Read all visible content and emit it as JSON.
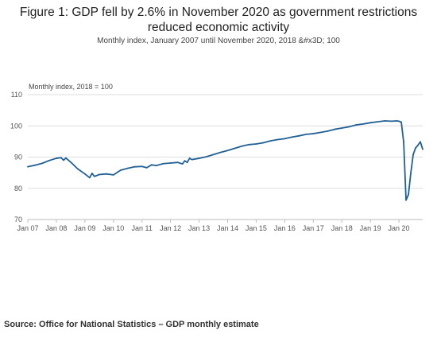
{
  "title": "Figure 1: GDP fell by 2.6% in November 2020 as government restrictions reduced economic activity",
  "subtitle": "Monthly index, January 2007 until November 2020, 2018 &#x3D; 100",
  "source": "Source: Office for National Statistics – GDP monthly estimate",
  "colors": {
    "line": "#206095",
    "grid": "#dddddd",
    "axis": "#bbbbbb"
  },
  "chart_data": {
    "type": "line",
    "title": "Figure 1: GDP fell by 2.6% in November 2020 as government restrictions reduced economic activity",
    "subtitle": "Monthly index, January 2007 until November 2020, 2018 &#x3D; 100",
    "ylabel": "Monthly index, 2018 = 100",
    "xlabel": "",
    "ylim": [
      70,
      110
    ],
    "yticks": [
      70,
      80,
      90,
      100,
      110
    ],
    "xlim": [
      "2007-01",
      "2020-11"
    ],
    "x_ticks": [
      "Jan 07",
      "Jan 08",
      "Jan 09",
      "Jan 10",
      "Jan 11",
      "Jan 12",
      "Jan 13",
      "Jan 14",
      "Jan 15",
      "Jan 16",
      "Jan 17",
      "Jan 18",
      "Jan 19",
      "Jan 20"
    ],
    "grid": true,
    "series": [
      {
        "values": [
          {
            "x": "2007-01",
            "y": 86.9
          },
          {
            "x": "2007-04",
            "y": 87.4
          },
          {
            "x": "2007-07",
            "y": 88.0
          },
          {
            "x": "2007-10",
            "y": 88.9
          },
          {
            "x": "2008-01",
            "y": 89.6
          },
          {
            "x": "2008-03",
            "y": 89.8
          },
          {
            "x": "2008-04",
            "y": 89.0
          },
          {
            "x": "2008-05",
            "y": 89.7
          },
          {
            "x": "2008-07",
            "y": 88.4
          },
          {
            "x": "2008-10",
            "y": 86.2
          },
          {
            "x": "2009-01",
            "y": 84.6
          },
          {
            "x": "2009-03",
            "y": 83.4
          },
          {
            "x": "2009-04",
            "y": 84.8
          },
          {
            "x": "2009-05",
            "y": 83.8
          },
          {
            "x": "2009-07",
            "y": 84.4
          },
          {
            "x": "2009-10",
            "y": 84.6
          },
          {
            "x": "2010-01",
            "y": 84.3
          },
          {
            "x": "2010-04",
            "y": 85.8
          },
          {
            "x": "2010-07",
            "y": 86.4
          },
          {
            "x": "2010-10",
            "y": 86.9
          },
          {
            "x": "2011-01",
            "y": 87.0
          },
          {
            "x": "2011-03",
            "y": 86.6
          },
          {
            "x": "2011-05",
            "y": 87.5
          },
          {
            "x": "2011-07",
            "y": 87.3
          },
          {
            "x": "2011-10",
            "y": 87.9
          },
          {
            "x": "2012-01",
            "y": 88.1
          },
          {
            "x": "2012-04",
            "y": 88.3
          },
          {
            "x": "2012-06",
            "y": 87.8
          },
          {
            "x": "2012-07",
            "y": 88.8
          },
          {
            "x": "2012-08",
            "y": 88.3
          },
          {
            "x": "2012-09",
            "y": 89.6
          },
          {
            "x": "2012-10",
            "y": 89.2
          },
          {
            "x": "2013-01",
            "y": 89.6
          },
          {
            "x": "2013-04",
            "y": 90.1
          },
          {
            "x": "2013-07",
            "y": 90.8
          },
          {
            "x": "2013-10",
            "y": 91.5
          },
          {
            "x": "2014-01",
            "y": 92.1
          },
          {
            "x": "2014-04",
            "y": 92.8
          },
          {
            "x": "2014-07",
            "y": 93.5
          },
          {
            "x": "2014-10",
            "y": 94.0
          },
          {
            "x": "2015-01",
            "y": 94.2
          },
          {
            "x": "2015-04",
            "y": 94.6
          },
          {
            "x": "2015-07",
            "y": 95.2
          },
          {
            "x": "2015-10",
            "y": 95.6
          },
          {
            "x": "2016-01",
            "y": 95.9
          },
          {
            "x": "2016-04",
            "y": 96.4
          },
          {
            "x": "2016-07",
            "y": 96.8
          },
          {
            "x": "2016-10",
            "y": 97.3
          },
          {
            "x": "2017-01",
            "y": 97.5
          },
          {
            "x": "2017-04",
            "y": 97.9
          },
          {
            "x": "2017-07",
            "y": 98.3
          },
          {
            "x": "2017-10",
            "y": 98.9
          },
          {
            "x": "2018-01",
            "y": 99.3
          },
          {
            "x": "2018-04",
            "y": 99.7
          },
          {
            "x": "2018-07",
            "y": 100.3
          },
          {
            "x": "2018-10",
            "y": 100.6
          },
          {
            "x": "2019-01",
            "y": 101.0
          },
          {
            "x": "2019-04",
            "y": 101.3
          },
          {
            "x": "2019-07",
            "y": 101.6
          },
          {
            "x": "2019-10",
            "y": 101.5
          },
          {
            "x": "2019-12",
            "y": 101.6
          },
          {
            "x": "2020-01",
            "y": 101.5
          },
          {
            "x": "2020-02",
            "y": 101.2
          },
          {
            "x": "2020-03",
            "y": 94.8
          },
          {
            "x": "2020-04",
            "y": 76.2
          },
          {
            "x": "2020-05",
            "y": 78.0
          },
          {
            "x": "2020-06",
            "y": 84.9
          },
          {
            "x": "2020-07",
            "y": 90.8
          },
          {
            "x": "2020-08",
            "y": 92.9
          },
          {
            "x": "2020-09",
            "y": 93.8
          },
          {
            "x": "2020-10",
            "y": 94.9
          },
          {
            "x": "2020-11",
            "y": 92.5
          }
        ]
      }
    ]
  }
}
